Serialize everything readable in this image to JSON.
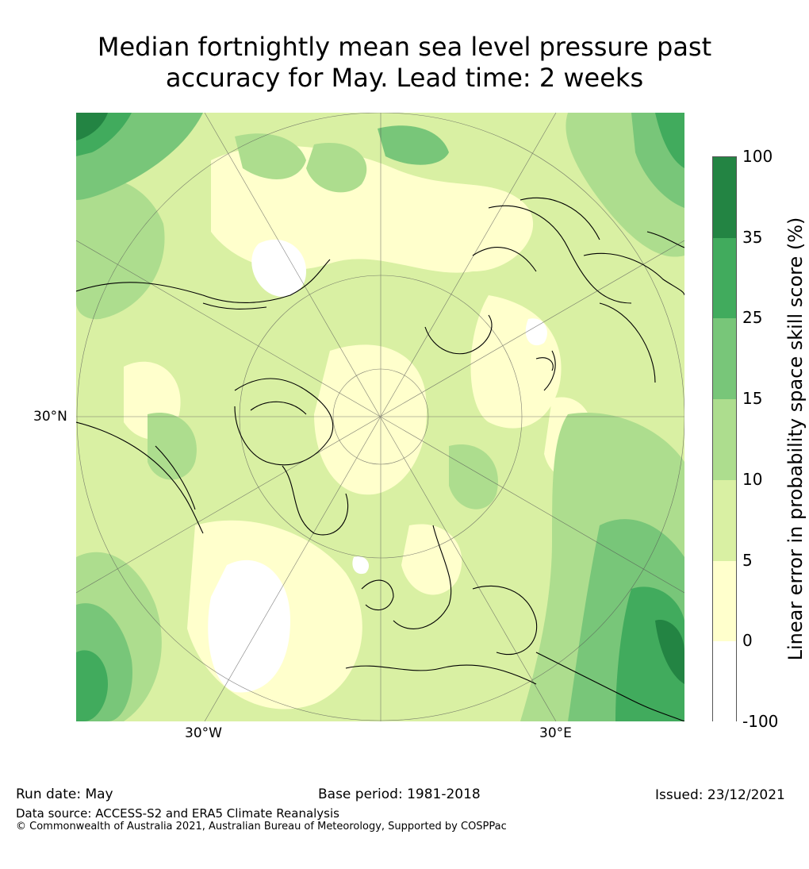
{
  "title_line1": "Median fortnightly mean sea level pressure past",
  "title_line2": "accuracy for May. Lead time: 2 weeks",
  "map_labels": {
    "lat_30n": "30°N",
    "lon_30w": "30°W",
    "lon_30e": "30°E"
  },
  "colorbar": {
    "title": "Linear error in probability space skill score (%)",
    "ticks": [
      "100",
      "35",
      "25",
      "15",
      "10",
      "5",
      "0",
      "-100"
    ],
    "colors": [
      "#238443",
      "#41ab5d",
      "#78c679",
      "#addd8e",
      "#d9f0a3",
      "#ffffcc",
      "#ffffff"
    ]
  },
  "footer": {
    "run_date": "Run date: May",
    "base_period": "Base period: 1981-2018",
    "issued": "Issued: 23/12/2021",
    "data_source": "Data source: ACCESS-S2 and ERA5 Climate Reanalysis",
    "copyright": "© Commonwealth of Australia 2021, Australian Bureau of Meteorology, Supported by COSPPac"
  }
}
